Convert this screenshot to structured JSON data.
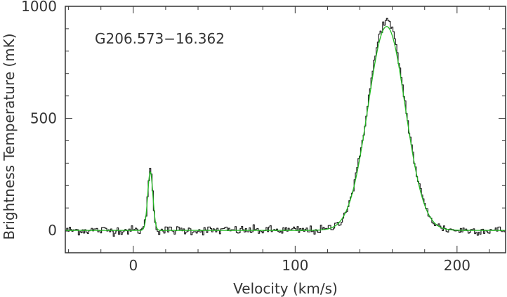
{
  "chart_data": {
    "type": "line",
    "title": "",
    "annotation": "G206.573−16.362",
    "xlabel": "Velocity (km/s)",
    "ylabel": "Brightness Temperature (mK)",
    "xlim": [
      -42,
      230
    ],
    "ylim": [
      -100,
      1000
    ],
    "x_ticks": [
      {
        "value": 0,
        "label": "0"
      },
      {
        "value": 100,
        "label": "100"
      },
      {
        "value": 200,
        "label": "200"
      }
    ],
    "y_ticks": [
      {
        "value": 0,
        "label": "0"
      },
      {
        "value": 500,
        "label": "500"
      },
      {
        "value": 1000,
        "label": "1000"
      }
    ],
    "series": [
      {
        "role": "observed spectrum",
        "color": "#222222",
        "style": "step",
        "channel_width_kms": 0.8,
        "noise_rms_mK": 10,
        "components": [
          {
            "center_kms": 10.5,
            "peak_mK": 270,
            "sigma_kms": 1.6
          },
          {
            "center_kms": 156.5,
            "peak_mK": 935,
            "sigma_kms": 11.5
          }
        ]
      },
      {
        "role": "gaussian fit",
        "color": "#22bb22",
        "style": "line",
        "components": [
          {
            "center_kms": 10.5,
            "peak_mK": 262,
            "sigma_kms": 1.6
          },
          {
            "center_kms": 156.5,
            "peak_mK": 910,
            "sigma_kms": 11.5
          }
        ]
      }
    ]
  }
}
